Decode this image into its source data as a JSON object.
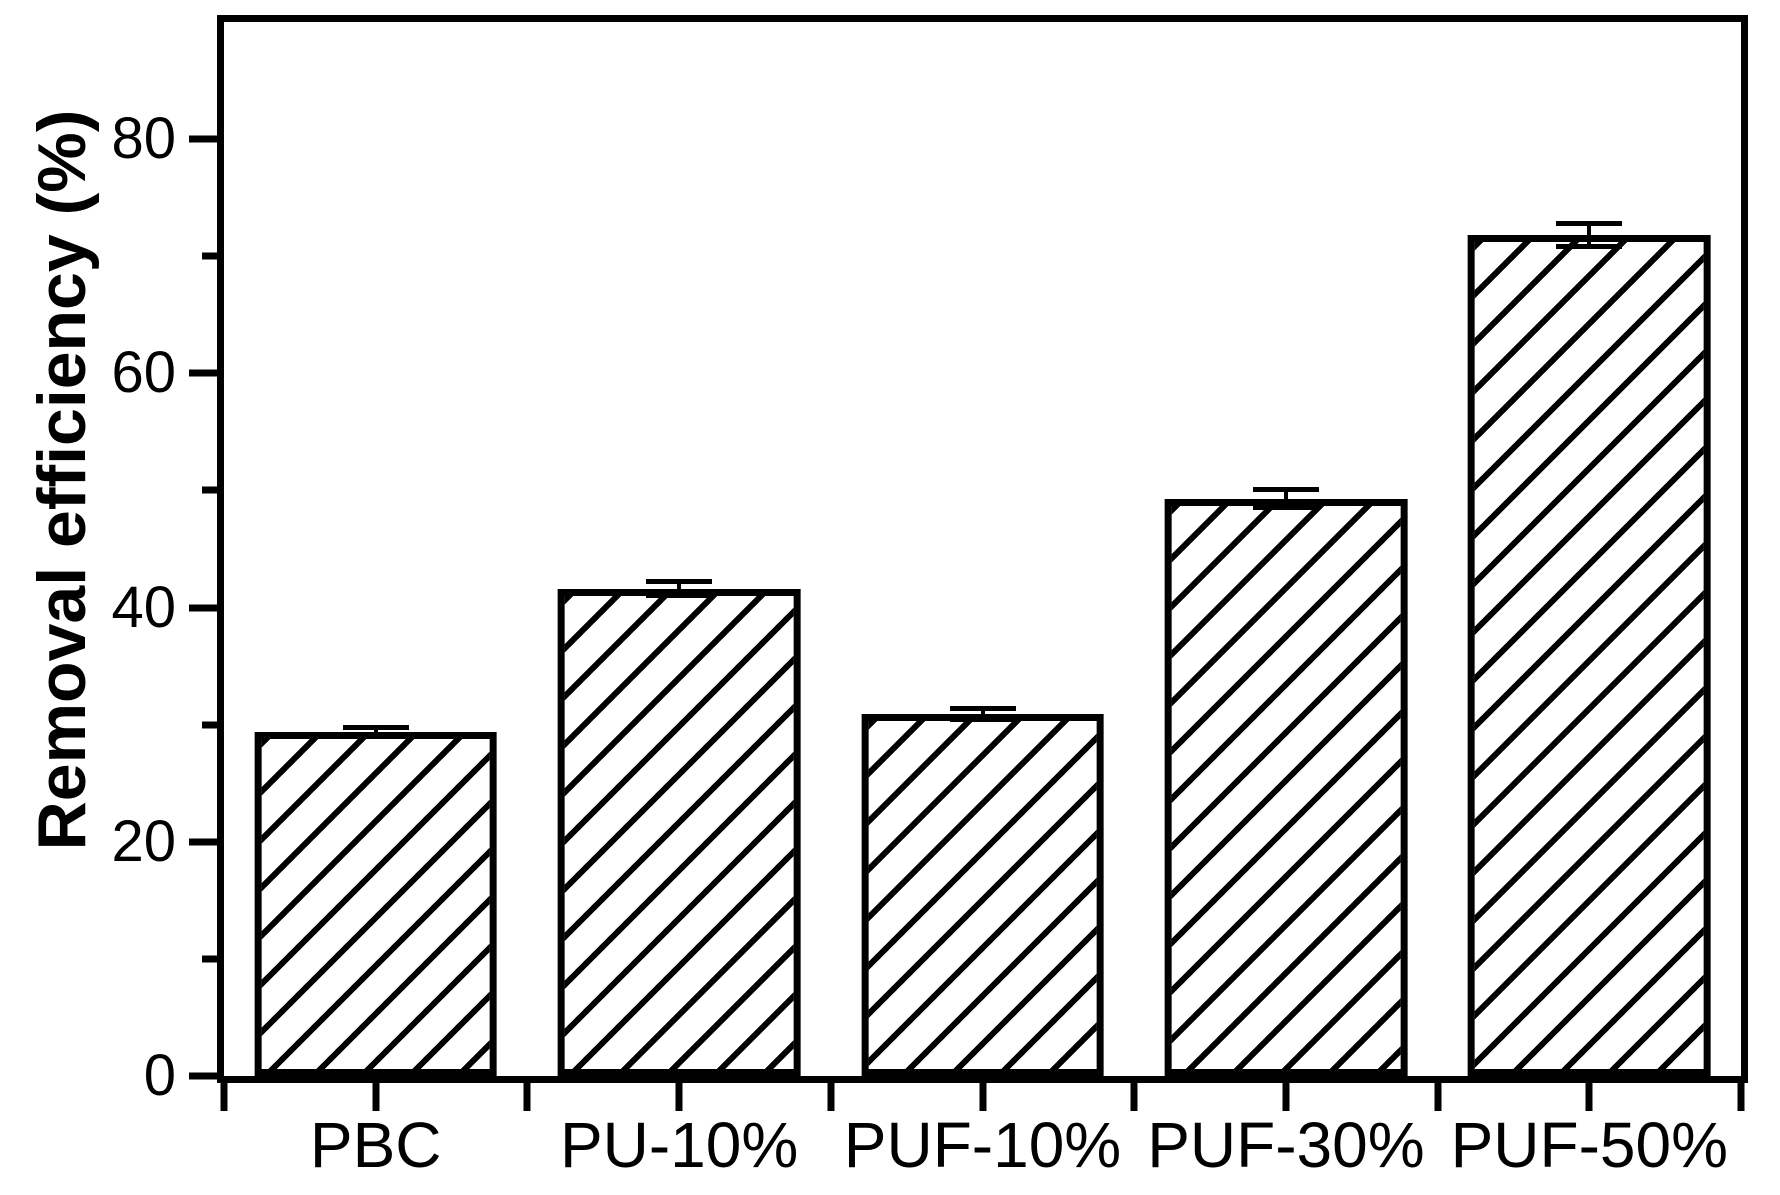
{
  "figure": {
    "background": "#ffffff",
    "axis_color": "#000000"
  },
  "chart_data": {
    "type": "bar",
    "title": "",
    "xlabel": "",
    "ylabel": "Removal efficiency (%)",
    "categories": [
      "PBC",
      "PU-10%",
      "PUF-10%",
      "PUF-30%",
      "PUF-50%"
    ],
    "values": [
      29.4,
      41.6,
      30.9,
      49.3,
      71.8
    ],
    "errors": [
      0.6,
      0.8,
      0.7,
      1.0,
      1.2
    ],
    "ylim": [
      0,
      90
    ],
    "yticks_major": [
      0,
      20,
      40,
      60,
      80
    ],
    "yticks_minor": [
      10,
      30,
      50,
      70
    ],
    "yticklabels": [
      "0",
      "20",
      "40",
      "60",
      "80"
    ],
    "xticks_percent": [
      0,
      10,
      20,
      30,
      40,
      50,
      60,
      70,
      80,
      90,
      100
    ],
    "bar_centers_percent": [
      10,
      30,
      50,
      70,
      90
    ],
    "bar_width_percent": 16,
    "grid": false,
    "legend": false,
    "frame": "full-box",
    "bar_style": "diagonal-hatch",
    "bar_edge_color": "#000000",
    "bar_fill_background": "#ffffff",
    "error_bar_color": "#000000"
  }
}
